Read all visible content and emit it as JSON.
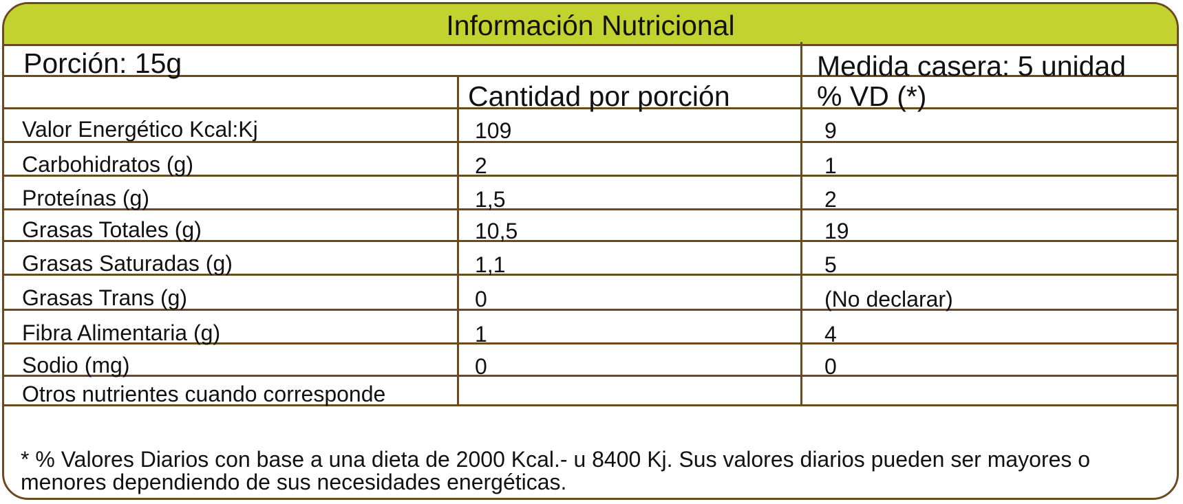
{
  "title": "Información Nutricional",
  "portion_label": "Porción: 15g",
  "household_measure": "Medida casera: 5 unidad",
  "headers": {
    "amount": "Cantidad por porción",
    "dv": "% VD (*)"
  },
  "rows": [
    {
      "name": "Valor Energético Kcal:Kj",
      "amount": "109",
      "dv": "9"
    },
    {
      "name": "Carbohidratos (g)",
      "amount": "2",
      "dv": "1"
    },
    {
      "name": "Proteínas (g)",
      "amount": "1,5",
      "dv": "2"
    },
    {
      "name": "Grasas Totales (g)",
      "amount": "10,5",
      "dv": "19"
    },
    {
      "name": "Grasas Saturadas (g)",
      "amount": "1,1",
      "dv": "5"
    },
    {
      "name": "Grasas Trans (g)",
      "amount": "0",
      "dv": "(No declarar)"
    },
    {
      "name": "Fibra Alimentaria (g)",
      "amount": "1",
      "dv": "4"
    },
    {
      "name": "Sodio (mg)",
      "amount": "0",
      "dv": "0"
    },
    {
      "name": "Otros nutrientes cuando corresponde",
      "amount": "",
      "dv": ""
    }
  ],
  "footnote": "* % Valores Diarios con base a una dieta de 2000 Kcal.- u 8400 Kj. Sus valores diarios pueden ser mayores o menores dependiendo de sus necesidades energéticas.",
  "colors": {
    "title_background": "#c2d22f",
    "border": "#6b4a1f"
  }
}
